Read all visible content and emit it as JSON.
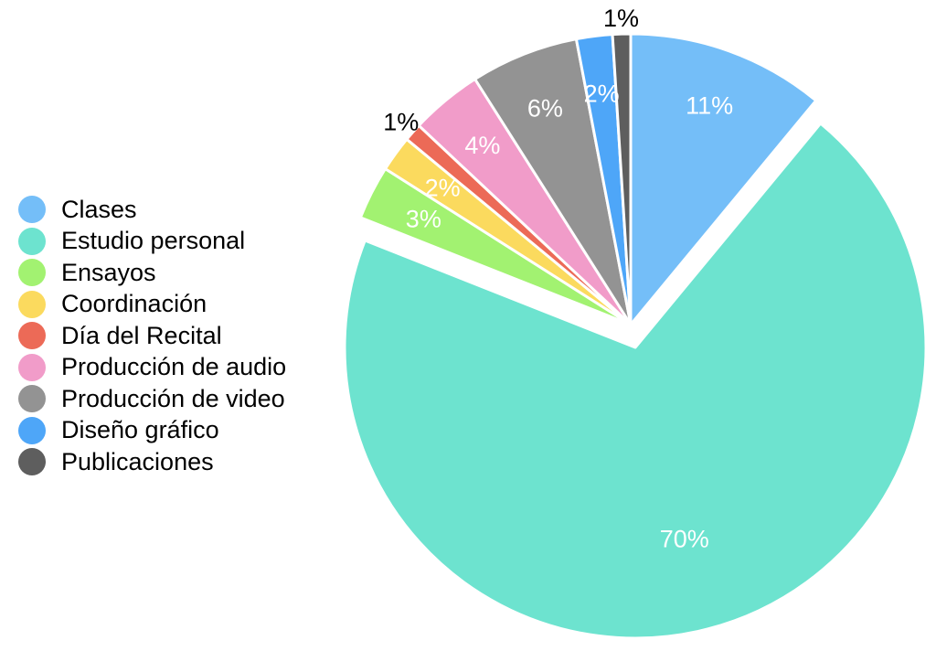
{
  "chart_data": {
    "type": "pie",
    "title": "",
    "legend_position": "left",
    "start_angle_deg": 0,
    "direction": "clockwise",
    "slices": [
      {
        "label": "Clases",
        "value": 11,
        "value_label": "11%",
        "color": "#74BEF8",
        "exploded": true,
        "label_outside": false
      },
      {
        "label": "Estudio personal",
        "value": 70,
        "value_label": "70%",
        "color": "#6DE3CF",
        "exploded": false,
        "label_outside": false
      },
      {
        "label": "Ensayos",
        "value": 3,
        "value_label": "3%",
        "color": "#A2F271",
        "exploded": true,
        "label_outside": false
      },
      {
        "label": "Coordinación",
        "value": 2,
        "value_label": "2%",
        "color": "#FBDA5E",
        "exploded": true,
        "label_outside": false
      },
      {
        "label": "Día del Recital",
        "value": 1,
        "value_label": "1%",
        "color": "#EC6A57",
        "exploded": true,
        "label_outside": true
      },
      {
        "label": "Producción de audio",
        "value": 4,
        "value_label": "4%",
        "color": "#F19CC9",
        "exploded": true,
        "label_outside": false
      },
      {
        "label": "Producción de video",
        "value": 6,
        "value_label": "6%",
        "color": "#939393",
        "exploded": true,
        "label_outside": false
      },
      {
        "label": "Diseño gráfico",
        "value": 2,
        "value_label": "2%",
        "color": "#4EA6F8",
        "exploded": true,
        "label_outside": false
      },
      {
        "label": "Publicaciones",
        "value": 1,
        "value_label": "1%",
        "color": "#5E5E5E",
        "exploded": true,
        "label_outside": true
      }
    ]
  }
}
